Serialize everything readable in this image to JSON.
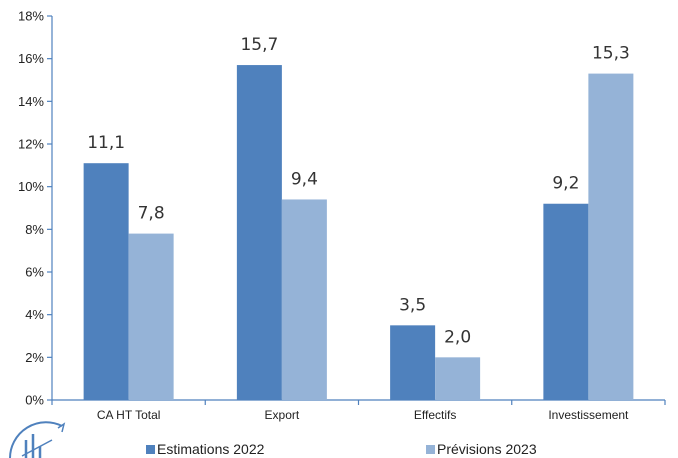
{
  "chart_data": {
    "type": "bar",
    "categories": [
      "CA HT Total",
      "Export",
      "Effectifs",
      "Investissement"
    ],
    "series": [
      {
        "name": "Estimations 2022",
        "values": [
          11.1,
          15.7,
          3.5,
          9.2
        ],
        "labels": [
          "11,1",
          "15,7",
          "3,5",
          "9,2"
        ],
        "color": "#4f81bd"
      },
      {
        "name": "Prévisions 2023",
        "values": [
          7.8,
          9.4,
          2.0,
          15.3
        ],
        "labels": [
          "7,8",
          "9,4",
          "2,0",
          "15,3"
        ],
        "color": "#95b3d7"
      }
    ],
    "y_ticks": [
      "0%",
      "2%",
      "4%",
      "6%",
      "8%",
      "10%",
      "12%",
      "14%",
      "16%",
      "18%"
    ],
    "ylim": [
      0,
      18
    ],
    "grid": false,
    "legend_position": "bottom",
    "axis_color": "#4f81bd"
  },
  "logo": {
    "icon": "logo-icon",
    "color": "#4f81bd"
  }
}
